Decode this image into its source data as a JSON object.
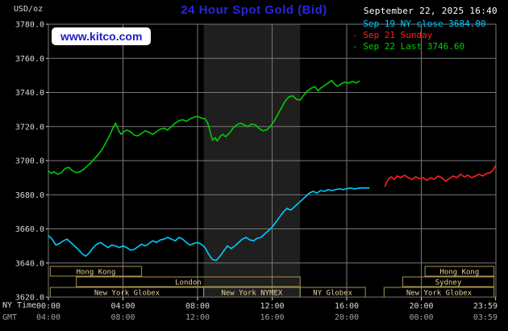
{
  "header": {
    "unit_label": "USD/oz",
    "title": "24 Hour Spot Gold (Bid)",
    "datetime": "September 22, 2025 16:40",
    "watermark": "www.kitco.com"
  },
  "axis": {
    "ny_time_label": "NY Time",
    "gmt_label": "GMT"
  },
  "legend": [
    {
      "text": "- Sep 19 NY close 3684.00",
      "color": "#00ccff"
    },
    {
      "text": "- Sep 21 Sunday",
      "color": "#ff2020"
    },
    {
      "text": "- Sep 22 Last 3746.60",
      "color": "#00cc00"
    }
  ],
  "colors": {
    "background": "#000000",
    "title": "#2626dd",
    "watermark_text": "#1d1dc2",
    "grid": "#787878",
    "band": "#1f1f1f",
    "axis_text": "#d8d8d8",
    "gmt_text": "#a0a0a0",
    "session_border": "#a39252",
    "session_text": "#e4d194",
    "series_cyan": "#00ccff",
    "series_red": "#ff2020",
    "series_green": "#00cc00"
  },
  "chart_data": {
    "type": "line",
    "title": "24 Hour Spot Gold (Bid)",
    "ylabel": "USD/oz",
    "ylim": [
      3620,
      3780
    ],
    "xlim_hours": [
      0,
      24
    ],
    "grid": true,
    "legend_position": "top-right",
    "last_value": 3746.6,
    "prior_close": 3684.0,
    "y_ticks": [
      "3780.0",
      "3760.0",
      "3740.0",
      "3720.0",
      "3700.0",
      "3680.0",
      "3660.0",
      "3640.0",
      "3620.0"
    ],
    "x_ticks": [
      {
        "h": 0,
        "ny": "00:00",
        "gmt": "04:00",
        "grid": false
      },
      {
        "h": 4,
        "ny": "04:00",
        "gmt": "08:00",
        "grid": true
      },
      {
        "h": 8,
        "ny": "08:00",
        "gmt": "12:00",
        "grid": true
      },
      {
        "h": 12,
        "ny": "12:00",
        "gmt": "16:00",
        "grid": true
      },
      {
        "h": 16,
        "ny": "16:00",
        "gmt": "20:00",
        "grid": true
      },
      {
        "h": 20,
        "ny": "20:00",
        "gmt": "00:00",
        "grid": true
      },
      {
        "h": 23.983,
        "ny": "23:59",
        "gmt": "03:59",
        "grid": false,
        "anchor": "end"
      }
    ],
    "band": {
      "start": 8.33,
      "end": 13.5,
      "label": "New York NYMEX hours"
    },
    "sessions": [
      {
        "row": 0,
        "start": 0.1,
        "end": 5.0,
        "label": "Hong Kong"
      },
      {
        "row": 0,
        "start": 20.2,
        "end": 23.9,
        "label": "Hong Kong"
      },
      {
        "row": 1,
        "start": 1.5,
        "end": 13.5,
        "label": "London"
      },
      {
        "row": 1,
        "start": 19.0,
        "end": 23.9,
        "label": "Sydney"
      },
      {
        "row": 2,
        "start": 0.1,
        "end": 8.33,
        "label": "New York Globex"
      },
      {
        "row": 2,
        "start": 8.33,
        "end": 13.5,
        "label": "New York NYMEX"
      },
      {
        "row": 2,
        "start": 13.5,
        "end": 17.0,
        "label": "NY Globex"
      },
      {
        "row": 2,
        "start": 18.0,
        "end": 23.9,
        "label": "New York Globex"
      }
    ],
    "series": [
      {
        "name": "Sep 19 NY close",
        "slug": "sep19-ny-close",
        "color_key": "series_cyan",
        "points": [
          [
            0,
            3656
          ],
          [
            0.2,
            3654
          ],
          [
            0.4,
            3650.5
          ],
          [
            0.6,
            3651.5
          ],
          [
            0.8,
            3653
          ],
          [
            1.0,
            3654
          ],
          [
            1.2,
            3652
          ],
          [
            1.4,
            3650
          ],
          [
            1.6,
            3648
          ],
          [
            1.8,
            3645.5
          ],
          [
            2.0,
            3644
          ],
          [
            2.2,
            3646
          ],
          [
            2.4,
            3649
          ],
          [
            2.6,
            3651
          ],
          [
            2.8,
            3652
          ],
          [
            3.0,
            3650.5
          ],
          [
            3.2,
            3649
          ],
          [
            3.4,
            3650.5
          ],
          [
            3.6,
            3650
          ],
          [
            3.8,
            3649
          ],
          [
            4.0,
            3650
          ],
          [
            4.2,
            3649
          ],
          [
            4.4,
            3647.5
          ],
          [
            4.6,
            3648
          ],
          [
            4.8,
            3649.5
          ],
          [
            5.0,
            3651
          ],
          [
            5.2,
            3650
          ],
          [
            5.4,
            3651.5
          ],
          [
            5.6,
            3653
          ],
          [
            5.8,
            3652
          ],
          [
            6.0,
            3653.5
          ],
          [
            6.2,
            3654
          ],
          [
            6.4,
            3655
          ],
          [
            6.6,
            3654
          ],
          [
            6.8,
            3653
          ],
          [
            7.0,
            3655
          ],
          [
            7.2,
            3654
          ],
          [
            7.4,
            3652
          ],
          [
            7.6,
            3650.5
          ],
          [
            7.8,
            3651.5
          ],
          [
            8.0,
            3652
          ],
          [
            8.2,
            3651
          ],
          [
            8.4,
            3649
          ],
          [
            8.6,
            3645
          ],
          [
            8.8,
            3642
          ],
          [
            9.0,
            3641.5
          ],
          [
            9.2,
            3644
          ],
          [
            9.4,
            3647
          ],
          [
            9.6,
            3650
          ],
          [
            9.8,
            3648.5
          ],
          [
            10.0,
            3650
          ],
          [
            10.2,
            3652
          ],
          [
            10.4,
            3654
          ],
          [
            10.6,
            3655
          ],
          [
            10.8,
            3653.5
          ],
          [
            11.0,
            3653
          ],
          [
            11.2,
            3654.5
          ],
          [
            11.4,
            3655
          ],
          [
            11.6,
            3657
          ],
          [
            11.8,
            3659
          ],
          [
            12.0,
            3661
          ],
          [
            12.2,
            3664
          ],
          [
            12.4,
            3667
          ],
          [
            12.6,
            3670
          ],
          [
            12.8,
            3672
          ],
          [
            13.0,
            3671
          ],
          [
            13.2,
            3673
          ],
          [
            13.4,
            3675
          ],
          [
            13.6,
            3677
          ],
          [
            13.8,
            3679
          ],
          [
            14.0,
            3681
          ],
          [
            14.2,
            3682
          ],
          [
            14.4,
            3681
          ],
          [
            14.6,
            3682.5
          ],
          [
            14.8,
            3682
          ],
          [
            15.0,
            3683
          ],
          [
            15.2,
            3682.5
          ],
          [
            15.4,
            3683
          ],
          [
            15.6,
            3683.5
          ],
          [
            15.8,
            3683
          ],
          [
            16.0,
            3683.5
          ],
          [
            16.2,
            3684
          ],
          [
            16.4,
            3683.5
          ],
          [
            16.7,
            3684
          ],
          [
            17.2,
            3684
          ]
        ]
      },
      {
        "name": "Sep 21 Sunday",
        "slug": "sep21-sunday",
        "color_key": "series_red",
        "points": [
          [
            18.05,
            3685
          ],
          [
            18.15,
            3687.5
          ],
          [
            18.25,
            3689.5
          ],
          [
            18.4,
            3690.5
          ],
          [
            18.55,
            3689
          ],
          [
            18.7,
            3691
          ],
          [
            18.9,
            3690
          ],
          [
            19.1,
            3691.5
          ],
          [
            19.3,
            3690
          ],
          [
            19.5,
            3689
          ],
          [
            19.7,
            3690.5
          ],
          [
            19.9,
            3689.5
          ],
          [
            20.1,
            3690
          ],
          [
            20.3,
            3688.5
          ],
          [
            20.5,
            3690
          ],
          [
            20.7,
            3689
          ],
          [
            20.9,
            3691
          ],
          [
            21.1,
            3690
          ],
          [
            21.3,
            3688
          ],
          [
            21.5,
            3689.5
          ],
          [
            21.7,
            3691
          ],
          [
            21.9,
            3690
          ],
          [
            22.1,
            3692
          ],
          [
            22.3,
            3690.5
          ],
          [
            22.5,
            3691.5
          ],
          [
            22.7,
            3690
          ],
          [
            22.9,
            3691
          ],
          [
            23.1,
            3692
          ],
          [
            23.3,
            3691
          ],
          [
            23.5,
            3692.5
          ],
          [
            23.7,
            3693
          ],
          [
            23.85,
            3694.5
          ],
          [
            23.98,
            3697
          ]
        ]
      },
      {
        "name": "Sep 22 Last",
        "slug": "sep22-last",
        "color_key": "series_green",
        "points": [
          [
            0,
            3694
          ],
          [
            0.15,
            3692.5
          ],
          [
            0.3,
            3693.5
          ],
          [
            0.5,
            3692
          ],
          [
            0.7,
            3693
          ],
          [
            0.9,
            3695.5
          ],
          [
            1.1,
            3696
          ],
          [
            1.3,
            3694
          ],
          [
            1.5,
            3693
          ],
          [
            1.7,
            3693.5
          ],
          [
            1.9,
            3695
          ],
          [
            2.1,
            3697
          ],
          [
            2.3,
            3699
          ],
          [
            2.5,
            3701.5
          ],
          [
            2.7,
            3704
          ],
          [
            2.9,
            3707
          ],
          [
            3.1,
            3711
          ],
          [
            3.3,
            3715
          ],
          [
            3.45,
            3719
          ],
          [
            3.6,
            3722
          ],
          [
            3.7,
            3719.5
          ],
          [
            3.8,
            3717
          ],
          [
            3.9,
            3715.5
          ],
          [
            4.0,
            3716.5
          ],
          [
            4.2,
            3718
          ],
          [
            4.4,
            3717
          ],
          [
            4.6,
            3715
          ],
          [
            4.8,
            3714.5
          ],
          [
            5.0,
            3716
          ],
          [
            5.2,
            3717.5
          ],
          [
            5.4,
            3716.5
          ],
          [
            5.6,
            3715.5
          ],
          [
            5.8,
            3717
          ],
          [
            6.0,
            3718.5
          ],
          [
            6.2,
            3719
          ],
          [
            6.4,
            3718
          ],
          [
            6.6,
            3720
          ],
          [
            6.8,
            3722
          ],
          [
            7.0,
            3723.5
          ],
          [
            7.2,
            3724
          ],
          [
            7.4,
            3723
          ],
          [
            7.6,
            3724.5
          ],
          [
            7.8,
            3725.5
          ],
          [
            8.0,
            3726
          ],
          [
            8.2,
            3725
          ],
          [
            8.4,
            3724.5
          ],
          [
            8.55,
            3722
          ],
          [
            8.7,
            3716
          ],
          [
            8.8,
            3712
          ],
          [
            8.95,
            3713.5
          ],
          [
            9.05,
            3711.5
          ],
          [
            9.2,
            3714
          ],
          [
            9.35,
            3715.5
          ],
          [
            9.5,
            3714
          ],
          [
            9.7,
            3716
          ],
          [
            9.9,
            3719
          ],
          [
            10.1,
            3721
          ],
          [
            10.3,
            3722
          ],
          [
            10.5,
            3721
          ],
          [
            10.7,
            3720
          ],
          [
            10.9,
            3721.5
          ],
          [
            11.1,
            3721
          ],
          [
            11.3,
            3719
          ],
          [
            11.5,
            3717.5
          ],
          [
            11.7,
            3718
          ],
          [
            11.9,
            3720
          ],
          [
            12.1,
            3723
          ],
          [
            12.3,
            3727
          ],
          [
            12.5,
            3731
          ],
          [
            12.7,
            3735
          ],
          [
            12.9,
            3737.5
          ],
          [
            13.1,
            3738
          ],
          [
            13.3,
            3736
          ],
          [
            13.5,
            3735.5
          ],
          [
            13.7,
            3738.5
          ],
          [
            13.9,
            3741
          ],
          [
            14.1,
            3742.5
          ],
          [
            14.3,
            3743.5
          ],
          [
            14.45,
            3741
          ],
          [
            14.6,
            3742.5
          ],
          [
            14.8,
            3744
          ],
          [
            15.0,
            3745.5
          ],
          [
            15.2,
            3747
          ],
          [
            15.35,
            3745
          ],
          [
            15.5,
            3743.5
          ],
          [
            15.7,
            3745
          ],
          [
            15.9,
            3746
          ],
          [
            16.1,
            3745.5
          ],
          [
            16.3,
            3746.5
          ],
          [
            16.5,
            3745.5
          ],
          [
            16.67,
            3746.6
          ]
        ]
      }
    ]
  }
}
